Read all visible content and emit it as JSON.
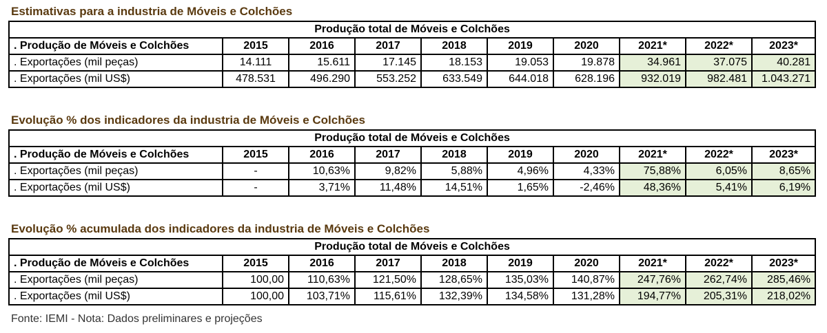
{
  "footer": "Fonte: IEMI - Nota: Dados preliminares e projeções",
  "projection_color": "#e6f0d8",
  "title_color": "#5a3a10",
  "tables": [
    {
      "title": "Estimativas para a industria de Móveis e Colchões",
      "banner": "Produção total de Móveis e Colchões",
      "header_label": ". Produção de Móveis e Colchões",
      "years": [
        "2015",
        "2016",
        "2017",
        "2018",
        "2019",
        "2020",
        "2021*",
        "2022*",
        "2023*"
      ],
      "rows": [
        {
          "label": ". Exportações (mil peças)",
          "values": [
            "14.111",
            "15.611",
            "17.145",
            "18.153",
            "19.053",
            "19.878",
            "34.961",
            "37.075",
            "40.281"
          ]
        },
        {
          "label": ". Exportações (mil US$)",
          "values": [
            "478.531",
            "496.290",
            "553.252",
            "633.549",
            "644.018",
            "628.196",
            "932.019",
            "982.481",
            "1.043.271"
          ]
        }
      ]
    },
    {
      "title": "Evolução % dos indicadores da industria de Móveis e Colchões",
      "banner": "Produção total de Móveis e Colchões",
      "header_label": ". Produção de Móveis e Colchões",
      "years": [
        "2015",
        "2016",
        "2017",
        "2018",
        "2019",
        "2020",
        "2021*",
        "2022*",
        "2023*"
      ],
      "rows": [
        {
          "label": ". Exportações (mil peças)",
          "values": [
            "-",
            "10,63%",
            "9,82%",
            "5,88%",
            "4,96%",
            "4,33%",
            "75,88%",
            "6,05%",
            "8,65%"
          ]
        },
        {
          "label": ". Exportações (mil US$)",
          "values": [
            "-",
            "3,71%",
            "11,48%",
            "14,51%",
            "1,65%",
            "-2,46%",
            "48,36%",
            "5,41%",
            "6,19%"
          ]
        }
      ]
    },
    {
      "title": "Evolução % acumulada dos indicadores da industria de Móveis e Colchões",
      "banner": "Produção total de Móveis e Colchões",
      "header_label": ". Produção de Móveis e Colchões",
      "years": [
        "2015",
        "2016",
        "2017",
        "2018",
        "2019",
        "2020",
        "2021*",
        "2022*",
        "2023*"
      ],
      "rows": [
        {
          "label": ". Exportações (mil peças)",
          "values": [
            "100,00",
            "110,63%",
            "121,50%",
            "128,65%",
            "135,03%",
            "140,87%",
            "247,76%",
            "262,74%",
            "285,46%"
          ]
        },
        {
          "label": ". Exportações (mil US$)",
          "values": [
            "100,00",
            "103,71%",
            "115,61%",
            "132,39%",
            "134,58%",
            "131,28%",
            "194,77%",
            "205,31%",
            "218,02%"
          ]
        }
      ]
    }
  ]
}
